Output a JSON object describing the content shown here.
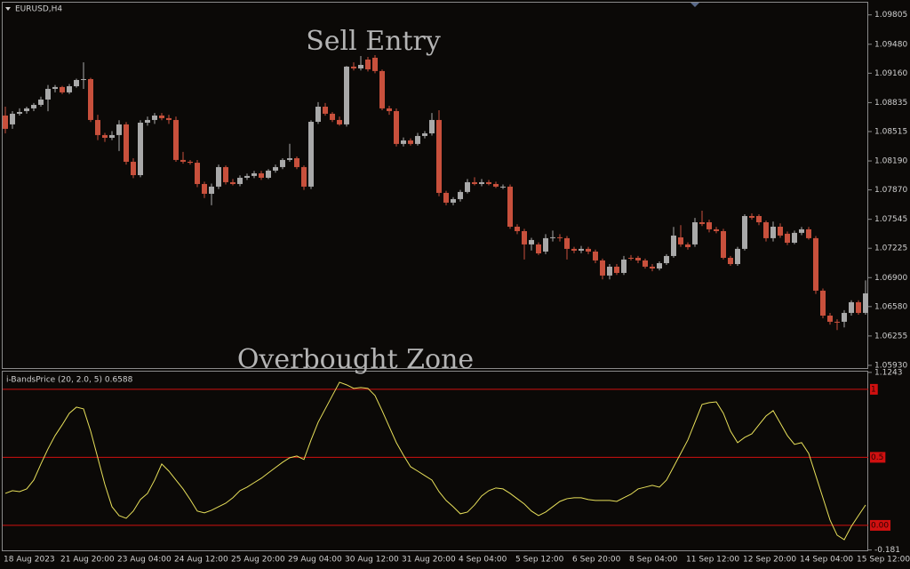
{
  "chart_data": [
    {
      "type": "candlestick",
      "symbol": "EURUSD,H4",
      "annotation": "Sell Entry",
      "categories": [
        "18 Aug 2023",
        null,
        null,
        null,
        null,
        null,
        null,
        null,
        "21 Aug 20:00",
        null,
        null,
        null,
        null,
        null,
        null,
        null,
        "23 Aug 04:00",
        null,
        null,
        null,
        null,
        null,
        null,
        null,
        "24 Aug 12:00",
        null,
        null,
        null,
        null,
        null,
        null,
        null,
        "25 Aug 20:00",
        null,
        null,
        null,
        null,
        null,
        null,
        null,
        "29 Aug 04:00",
        null,
        null,
        null,
        null,
        null,
        null,
        null,
        "30 Aug 12:00",
        null,
        null,
        null,
        null,
        null,
        null,
        null,
        "31 Aug 20:00",
        null,
        null,
        null,
        null,
        null,
        null,
        null,
        "4 Sep 04:00",
        null,
        null,
        null,
        null,
        null,
        null,
        null,
        "5 Sep 12:00",
        null,
        null,
        null,
        null,
        null,
        null,
        null,
        "6 Sep 20:00",
        null,
        null,
        null,
        null,
        null,
        null,
        null,
        "8 Sep 04:00",
        null,
        null,
        null,
        null,
        null,
        null,
        null,
        "11 Sep 12:00",
        null,
        null,
        null,
        null,
        null,
        null,
        null,
        "12 Sep 20:00",
        null,
        null,
        null,
        null,
        null,
        null,
        null,
        "14 Sep 04:00",
        null,
        null,
        null,
        null,
        null,
        null,
        null,
        "15 Sep 12:00",
        null
      ],
      "open": [
        1.08692,
        1.08594,
        1.08712,
        1.08741,
        1.08771,
        1.0881,
        1.08869,
        1.08987,
        1.09007,
        1.08948,
        1.09016,
        1.09085,
        1.09095,
        1.08643,
        1.08476,
        1.08446,
        1.08476,
        1.08594,
        1.08181,
        1.08033,
        1.08613,
        1.08643,
        1.08692,
        1.08663,
        1.08643,
        1.08201,
        1.08181,
        1.0817,
        1.07935,
        1.07827,
        1.07906,
        1.08122,
        1.07955,
        1.07935,
        1.08004,
        1.08024,
        1.08053,
        1.08004,
        1.08083,
        1.08122,
        1.08201,
        1.0822,
        1.08122,
        1.07906,
        1.08623,
        1.0879,
        1.08712,
        1.08643,
        1.08594,
        1.09233,
        1.09213,
        1.09311,
        1.09331,
        1.09184,
        1.08771,
        1.08741,
        1.08378,
        1.08417,
        1.08378,
        1.08466,
        1.08495,
        1.08643,
        1.07837,
        1.07729,
        1.07768,
        1.07847,
        1.07955,
        1.07935,
        1.07955,
        1.07935,
        1.07896,
        1.07906,
        1.07463,
        1.07414,
        1.07267,
        1.07267,
        1.07188,
        1.07336,
        1.07346,
        1.07336,
        1.07218,
        1.07198,
        1.07218,
        1.07188,
        1.0709,
        1.06923,
        1.07021,
        1.06952,
        1.07119,
        1.07119,
        1.0709,
        1.07021,
        1.07001,
        1.0706,
        1.07139,
        1.07345,
        1.07267,
        1.07267,
        1.07512,
        1.07512,
        1.07434,
        1.07414,
        1.07119,
        1.0705,
        1.07218,
        1.07581,
        1.07581,
        1.07512,
        1.07336,
        1.07463,
        1.07385,
        1.07286,
        1.07395,
        1.07434,
        1.07336,
        1.06756,
        1.0648,
        1.06412,
        1.06412,
        1.0651,
        1.06628,
        1.0651
      ],
      "high": [
        1.0879,
        1.08741,
        1.08771,
        1.0879,
        1.0883,
        1.089,
        1.0903,
        1.0903,
        1.0902,
        1.0904,
        1.091,
        1.0928,
        1.0911,
        1.087,
        1.085,
        1.0852,
        1.0864,
        1.0862,
        1.0822,
        1.0864,
        1.0868,
        1.0872,
        1.0872,
        1.087,
        1.0868,
        1.0829,
        1.082,
        1.082,
        1.0796,
        1.0794,
        1.0815,
        1.0814,
        1.0799,
        1.0803,
        1.0805,
        1.0808,
        1.0808,
        1.081,
        1.0815,
        1.0822,
        1.0838,
        1.0824,
        1.0814,
        1.0864,
        1.0884,
        1.0883,
        1.0873,
        1.0868,
        1.0924,
        1.0928,
        1.0935,
        1.0934,
        1.0936,
        1.092,
        1.088,
        1.0877,
        1.0845,
        1.0844,
        1.085,
        1.0852,
        1.0872,
        1.0875,
        1.0786,
        1.0779,
        1.0787,
        1.0799,
        1.0801,
        1.0799,
        1.0798,
        1.0796,
        1.0793,
        1.0793,
        1.0749,
        1.0744,
        1.0734,
        1.0729,
        1.0738,
        1.0742,
        1.0738,
        1.0736,
        1.0724,
        1.0725,
        1.0724,
        1.0721,
        1.0711,
        1.0705,
        1.0705,
        1.0714,
        1.0715,
        1.0714,
        1.0711,
        1.0705,
        1.0708,
        1.0716,
        1.0746,
        1.0748,
        1.0729,
        1.0756,
        1.0764,
        1.0754,
        1.0746,
        1.0744,
        1.0714,
        1.0724,
        1.076,
        1.0761,
        1.076,
        1.0753,
        1.0752,
        1.075,
        1.0741,
        1.0742,
        1.0746,
        1.0746,
        1.0736,
        1.0678,
        1.0651,
        1.0644,
        1.0654,
        1.0665,
        1.0665,
        1.0687
      ],
      "low": [
        1.08495,
        1.08545,
        1.08692,
        1.08712,
        1.08741,
        1.0879,
        1.0874,
        1.08948,
        1.0893,
        1.0893,
        1.09,
        1.08987,
        1.0862,
        1.0842,
        1.084,
        1.0842,
        1.083,
        1.0815,
        1.08,
        1.0801,
        1.0858,
        1.086,
        1.0864,
        1.086,
        1.0818,
        1.0816,
        1.0815,
        1.079,
        1.0778,
        1.077,
        1.0788,
        1.0793,
        1.0792,
        1.0791,
        1.0798,
        1.08,
        1.0798,
        1.0799,
        1.0806,
        1.081,
        1.0818,
        1.081,
        1.0787,
        1.0788,
        1.086,
        1.0869,
        1.0862,
        1.0858,
        1.0857,
        1.0919,
        1.0919,
        1.0918,
        1.0916,
        1.0875,
        1.087,
        1.0835,
        1.0835,
        1.0836,
        1.0836,
        1.0844,
        1.0847,
        1.078,
        1.077,
        1.077,
        1.0774,
        1.0783,
        1.0792,
        1.0791,
        1.0792,
        1.0789,
        1.0788,
        1.0744,
        1.0738,
        1.071,
        1.072,
        1.0715,
        1.0716,
        1.073,
        1.073,
        1.071,
        1.0717,
        1.0717,
        1.0716,
        1.0706,
        1.0688,
        1.0688,
        1.0693,
        1.0693,
        1.0709,
        1.0706,
        1.07,
        1.0697,
        1.0698,
        1.0704,
        1.0712,
        1.0724,
        1.0721,
        1.0724,
        1.0747,
        1.074,
        1.0739,
        1.071,
        1.0703,
        1.0703,
        1.072,
        1.0754,
        1.0748,
        1.073,
        1.073,
        1.0734,
        1.0726,
        1.0727,
        1.0737,
        1.0732,
        1.0672,
        1.0645,
        1.0638,
        1.0632,
        1.0635,
        1.0648,
        1.0649,
        1.0649
      ],
      "close": [
        1.08545,
        1.08712,
        1.08731,
        1.08771,
        1.0881,
        1.08869,
        1.08987,
        1.09007,
        1.08948,
        1.09016,
        1.09085,
        1.09095,
        1.08643,
        1.08476,
        1.08446,
        1.08476,
        1.08594,
        1.08181,
        1.08033,
        1.08613,
        1.08643,
        1.08692,
        1.08663,
        1.08643,
        1.08201,
        1.08181,
        1.0817,
        1.07935,
        1.07827,
        1.07906,
        1.08122,
        1.07955,
        1.07935,
        1.08004,
        1.08024,
        1.08053,
        1.08004,
        1.08083,
        1.08122,
        1.08201,
        1.0822,
        1.08122,
        1.07906,
        1.08623,
        1.0879,
        1.08712,
        1.08643,
        1.08594,
        1.09233,
        1.09213,
        1.09252,
        1.09203,
        1.09184,
        1.08771,
        1.08741,
        1.08378,
        1.08417,
        1.08378,
        1.08466,
        1.08495,
        1.08643,
        1.07837,
        1.07729,
        1.07768,
        1.07847,
        1.07955,
        1.07935,
        1.07955,
        1.07935,
        1.07906,
        1.07906,
        1.07463,
        1.07414,
        1.07267,
        1.07316,
        1.07168,
        1.07336,
        1.07346,
        1.07336,
        1.07218,
        1.07198,
        1.07218,
        1.07188,
        1.0709,
        1.06923,
        1.07021,
        1.06952,
        1.071,
        1.0711,
        1.0709,
        1.07021,
        1.07001,
        1.0706,
        1.07139,
        1.07365,
        1.07267,
        1.07237,
        1.07512,
        1.07493,
        1.07434,
        1.07414,
        1.07119,
        1.0705,
        1.07218,
        1.07581,
        1.07562,
        1.07512,
        1.07336,
        1.07463,
        1.07365,
        1.07286,
        1.07395,
        1.07434,
        1.07336,
        1.06756,
        1.0648,
        1.06412,
        1.06402,
        1.0651,
        1.06628,
        1.0651,
        1.06726
      ],
      "up_color": "#a9a9a9",
      "down_color": "#c8503c",
      "ylim": [
        1.059,
        1.0994
      ],
      "yticks": [
        1.09805,
        {
          "value": 1.0948,
          "label": "1.09480"
        },
        {
          "value": 1.0916,
          "label": "1.09160"
        },
        1.08835,
        1.08515,
        {
          "value": 1.0819,
          "label": "1.08190"
        },
        {
          "value": 1.0787,
          "label": "1.07870"
        },
        1.07545,
        1.07225,
        {
          "value": 1.069,
          "label": "1.06900"
        },
        {
          "value": 1.0658,
          "label": "1.06580"
        },
        1.06255,
        {
          "value": 1.0593,
          "label": "1.05930"
        }
      ]
    },
    {
      "type": "line",
      "title": "i-BandsPrice (20, 2.0, 5) 0.6588",
      "annotation": "Overbought Zone",
      "values": [
        0.235,
        0.255,
        0.248,
        0.268,
        0.333,
        0.451,
        0.562,
        0.66,
        0.739,
        0.824,
        0.869,
        0.856,
        0.693,
        0.497,
        0.301,
        0.137,
        0.072,
        0.052,
        0.105,
        0.19,
        0.235,
        0.333,
        0.451,
        0.399,
        0.333,
        0.268,
        0.19,
        0.105,
        0.092,
        0.111,
        0.137,
        0.163,
        0.203,
        0.255,
        0.281,
        0.314,
        0.346,
        0.386,
        0.425,
        0.464,
        0.497,
        0.51,
        0.484,
        0.627,
        0.758,
        0.856,
        0.954,
        1.052,
        1.033,
        1.007,
        1.013,
        1.007,
        0.954,
        0.843,
        0.725,
        0.608,
        0.516,
        0.431,
        0.399,
        0.366,
        0.333,
        0.248,
        0.183,
        0.137,
        0.085,
        0.098,
        0.15,
        0.216,
        0.255,
        0.275,
        0.268,
        0.235,
        0.196,
        0.157,
        0.105,
        0.072,
        0.098,
        0.137,
        0.176,
        0.196,
        0.203,
        0.203,
        0.19,
        0.183,
        0.183,
        0.183,
        0.176,
        0.203,
        0.229,
        0.268,
        0.281,
        0.294,
        0.281,
        0.333,
        0.431,
        0.529,
        0.627,
        0.758,
        0.889,
        0.902,
        0.908,
        0.824,
        0.693,
        0.608,
        0.647,
        0.673,
        0.739,
        0.804,
        0.843,
        0.752,
        0.66,
        0.595,
        0.608,
        0.529,
        0.366,
        0.203,
        0.039,
        -0.072,
        -0.105,
        -0.007,
        0.072,
        0.15
      ],
      "color": "#e8e05a",
      "ylim": [
        -0.19,
        1.13
      ],
      "yticks": [
        1.1243,
        -0.181
      ],
      "levels": [
        1,
        0.5,
        {
          "value": 0,
          "label": "0.00"
        }
      ],
      "level_color": "#d01010"
    }
  ]
}
